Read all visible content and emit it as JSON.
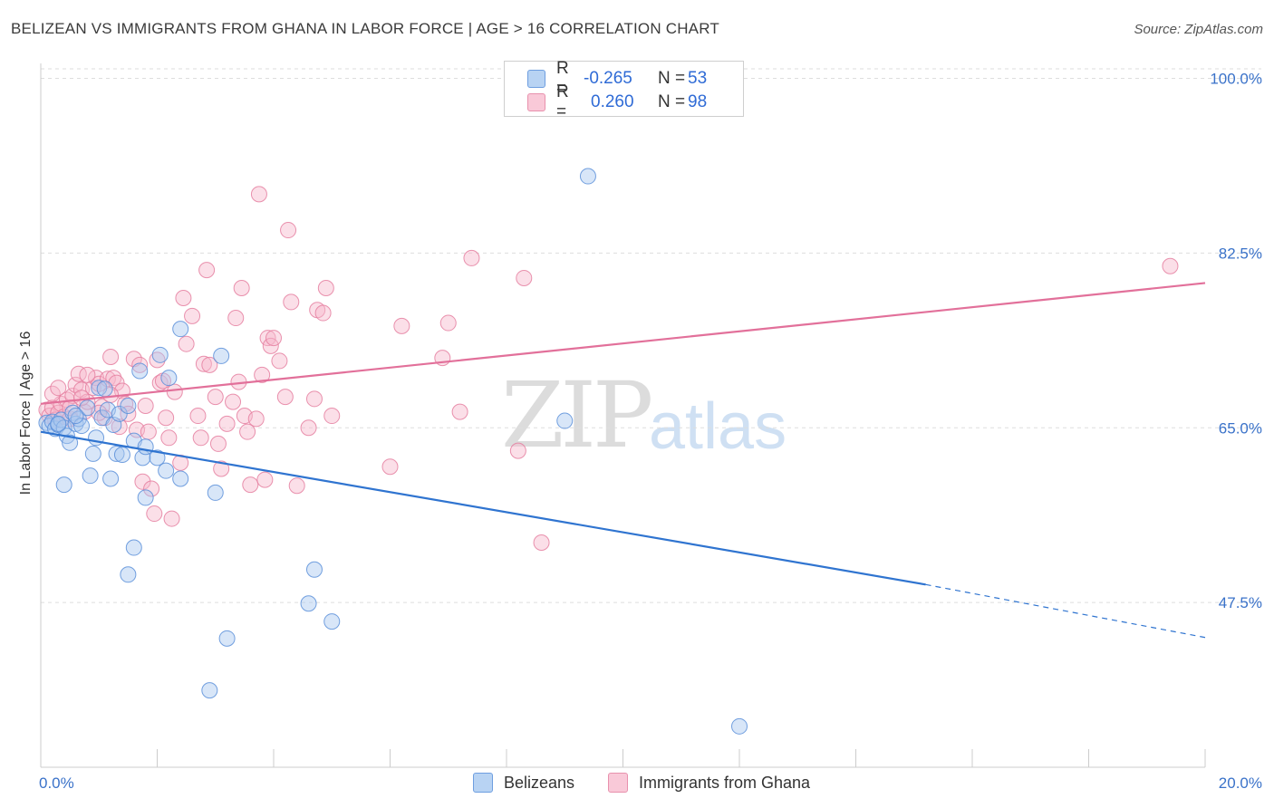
{
  "title": "BELIZEAN VS IMMIGRANTS FROM GHANA IN LABOR FORCE | AGE > 16 CORRELATION CHART",
  "source": "Source: ZipAtlas.com",
  "watermark": {
    "main": "ZIP",
    "sub": "atlas"
  },
  "colors": {
    "blue_fill": "#a8c8f0",
    "blue_stroke": "#5b8fd9",
    "blue_line": "#2f74d0",
    "pink_fill": "#f6b8cb",
    "pink_stroke": "#e57fa0",
    "pink_line": "#e2709a",
    "tick_label": "#3a72c9",
    "grid": "#dddddd"
  },
  "legend_top": {
    "rows": [
      {
        "r_label": "R =",
        "r_value": "-0.265",
        "n_label": "N =",
        "n_value": "53"
      },
      {
        "r_label": "R =",
        "r_value": "0.260",
        "n_label": "N =",
        "n_value": "98"
      }
    ]
  },
  "legend_bottom": {
    "series1": "Belizeans",
    "series2": "Immigrants from Ghana"
  },
  "chart_data": {
    "type": "scatter",
    "title": "BELIZEAN VS IMMIGRANTS FROM GHANA IN LABOR FORCE | AGE > 16 CORRELATION CHART",
    "xlabel": "",
    "ylabel": "In Labor Force | Age > 16",
    "xlim": [
      0,
      20
    ],
    "ylim": [
      31,
      101.5
    ],
    "x_tick_labels": [
      "0.0%",
      "20.0%"
    ],
    "y_ticks": [
      47.5,
      65.0,
      82.5,
      100.0
    ],
    "y_tick_labels": [
      "47.5%",
      "65.0%",
      "82.5%",
      "100.0%"
    ],
    "grid": true,
    "legend_placement": "bottom",
    "series": [
      {
        "name": "Belizeans",
        "color": "#a8c8f0",
        "points": [
          [
            0.1,
            65.5
          ],
          [
            0.15,
            65.2
          ],
          [
            0.2,
            65.6
          ],
          [
            0.25,
            64.9
          ],
          [
            0.3,
            65.3
          ],
          [
            0.35,
            65.8
          ],
          [
            0.4,
            65.0
          ],
          [
            0.45,
            64.2
          ],
          [
            0.5,
            63.5
          ],
          [
            0.55,
            66.5
          ],
          [
            0.6,
            65.4
          ],
          [
            0.65,
            65.9
          ],
          [
            0.7,
            65.2
          ],
          [
            0.8,
            67.0
          ],
          [
            0.85,
            60.2
          ],
          [
            0.9,
            62.4
          ],
          [
            0.95,
            64.0
          ],
          [
            1.0,
            69.0
          ],
          [
            1.05,
            66.0
          ],
          [
            1.1,
            68.9
          ],
          [
            1.15,
            66.8
          ],
          [
            1.2,
            59.9
          ],
          [
            1.25,
            65.3
          ],
          [
            1.3,
            62.4
          ],
          [
            1.35,
            66.4
          ],
          [
            1.4,
            62.3
          ],
          [
            1.5,
            67.2
          ],
          [
            1.5,
            50.3
          ],
          [
            1.6,
            63.7
          ],
          [
            1.6,
            53.0
          ],
          [
            1.7,
            70.7
          ],
          [
            1.75,
            62.0
          ],
          [
            1.8,
            63.1
          ],
          [
            1.8,
            58.0
          ],
          [
            2.0,
            62.0
          ],
          [
            2.05,
            72.3
          ],
          [
            2.15,
            60.7
          ],
          [
            2.2,
            70.0
          ],
          [
            2.4,
            59.9
          ],
          [
            2.4,
            74.9
          ],
          [
            3.0,
            58.5
          ],
          [
            3.1,
            72.2
          ],
          [
            3.2,
            43.9
          ],
          [
            2.9,
            38.7
          ],
          [
            0.4,
            59.3
          ],
          [
            4.6,
            47.4
          ],
          [
            4.7,
            50.8
          ],
          [
            5.0,
            45.6
          ],
          [
            9.4,
            90.2
          ],
          [
            9.0,
            65.7
          ],
          [
            12.0,
            35.1
          ],
          [
            0.3,
            65.4
          ],
          [
            0.6,
            66.2
          ]
        ]
      },
      {
        "name": "Immigrants from Ghana",
        "color": "#f6b8cb",
        "points": [
          [
            0.1,
            66.8
          ],
          [
            0.15,
            66.2
          ],
          [
            0.2,
            67.0
          ],
          [
            0.25,
            65.8
          ],
          [
            0.3,
            66.5
          ],
          [
            0.35,
            67.4
          ],
          [
            0.4,
            66.1
          ],
          [
            0.45,
            67.8
          ],
          [
            0.5,
            65.9
          ],
          [
            0.55,
            68.2
          ],
          [
            0.6,
            69.3
          ],
          [
            0.65,
            70.4
          ],
          [
            0.7,
            68.8
          ],
          [
            0.75,
            66.6
          ],
          [
            0.8,
            67.6
          ],
          [
            0.9,
            69.0
          ],
          [
            0.95,
            70.0
          ],
          [
            1.0,
            69.4
          ],
          [
            1.05,
            67.1
          ],
          [
            1.1,
            66.0
          ],
          [
            1.15,
            69.9
          ],
          [
            1.2,
            72.1
          ],
          [
            1.25,
            70.0
          ],
          [
            1.3,
            69.5
          ],
          [
            1.35,
            65.1
          ],
          [
            1.4,
            68.7
          ],
          [
            1.45,
            67.4
          ],
          [
            1.5,
            66.4
          ],
          [
            1.6,
            71.9
          ],
          [
            1.65,
            64.8
          ],
          [
            1.7,
            71.3
          ],
          [
            1.75,
            59.6
          ],
          [
            1.8,
            67.2
          ],
          [
            1.85,
            64.6
          ],
          [
            1.9,
            58.9
          ],
          [
            1.95,
            56.4
          ],
          [
            2.0,
            71.8
          ],
          [
            2.05,
            69.5
          ],
          [
            2.1,
            69.7
          ],
          [
            2.15,
            66.0
          ],
          [
            2.2,
            64.0
          ],
          [
            2.25,
            55.9
          ],
          [
            2.3,
            68.6
          ],
          [
            2.4,
            61.5
          ],
          [
            2.45,
            78.0
          ],
          [
            2.5,
            73.4
          ],
          [
            2.6,
            76.2
          ],
          [
            2.7,
            66.2
          ],
          [
            2.75,
            64.0
          ],
          [
            2.8,
            71.4
          ],
          [
            2.85,
            80.8
          ],
          [
            2.9,
            71.3
          ],
          [
            3.0,
            68.1
          ],
          [
            3.05,
            63.4
          ],
          [
            3.1,
            60.9
          ],
          [
            3.2,
            65.4
          ],
          [
            3.3,
            67.6
          ],
          [
            3.35,
            76.0
          ],
          [
            3.4,
            69.6
          ],
          [
            3.45,
            79.0
          ],
          [
            3.5,
            66.2
          ],
          [
            3.55,
            64.6
          ],
          [
            3.6,
            59.3
          ],
          [
            3.7,
            65.9
          ],
          [
            3.75,
            88.4
          ],
          [
            3.8,
            70.3
          ],
          [
            3.85,
            59.8
          ],
          [
            3.9,
            74.0
          ],
          [
            3.95,
            73.2
          ],
          [
            4.0,
            74.0
          ],
          [
            4.1,
            71.7
          ],
          [
            4.2,
            68.1
          ],
          [
            4.25,
            84.8
          ],
          [
            4.3,
            77.6
          ],
          [
            4.4,
            59.2
          ],
          [
            4.6,
            65.0
          ],
          [
            4.7,
            67.9
          ],
          [
            4.75,
            76.8
          ],
          [
            4.85,
            76.5
          ],
          [
            4.9,
            79.0
          ],
          [
            5.0,
            66.2
          ],
          [
            6.0,
            61.1
          ],
          [
            6.2,
            75.2
          ],
          [
            6.9,
            72.0
          ],
          [
            7.0,
            75.5
          ],
          [
            7.2,
            66.6
          ],
          [
            7.4,
            82.0
          ],
          [
            8.2,
            62.7
          ],
          [
            8.3,
            80.0
          ],
          [
            8.6,
            53.5
          ],
          [
            19.4,
            81.2
          ],
          [
            0.2,
            68.4
          ],
          [
            0.3,
            69.0
          ],
          [
            0.5,
            67.0
          ],
          [
            0.7,
            68.0
          ],
          [
            0.8,
            70.3
          ],
          [
            1.0,
            66.5
          ],
          [
            1.2,
            68.3
          ]
        ]
      }
    ],
    "trendlines": [
      {
        "series": "Belizeans",
        "x0": 0,
        "y0": 64.6,
        "x1": 15.2,
        "y1": 49.3,
        "dashed_to": [
          20,
          44.0
        ]
      },
      {
        "series": "Immigrants from Ghana",
        "x0": 0,
        "y0": 67.4,
        "x1": 20,
        "y1": 79.5
      }
    ]
  }
}
